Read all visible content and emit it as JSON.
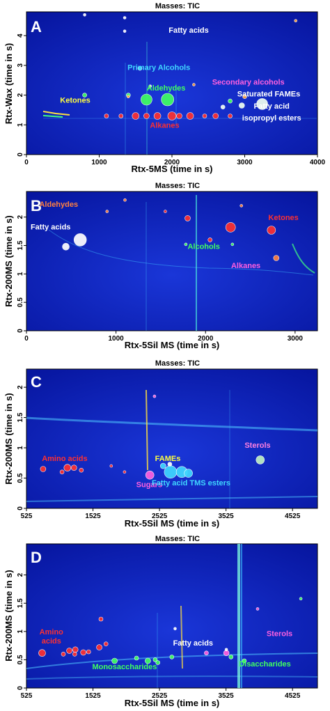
{
  "colors": {
    "background": "#0a1fb0",
    "frame": "#000000",
    "text": "#000000",
    "white": "#ffffff"
  },
  "chart_data": [
    {
      "type": "scatter",
      "panel_letter": "A",
      "title": "Masses:  TIC",
      "xlabel": "Rtx-5MS (time in s)",
      "ylabel": "Rtx-Wax (time in s)",
      "xlim": [
        0,
        4000
      ],
      "ylim": [
        0,
        4.8
      ],
      "xticks": [
        0,
        1000,
        2000,
        3000,
        4000
      ],
      "yticks": [
        0,
        1,
        2,
        3,
        4
      ],
      "annotations": [
        {
          "text": "Fatty acids",
          "x": 2230,
          "y": 4.1,
          "color": "#ffffff"
        },
        {
          "text": "Primary Alcohols",
          "x": 1820,
          "y": 2.85,
          "color": "#40d8ff"
        },
        {
          "text": "Secondary alcohols",
          "x": 3050,
          "y": 2.35,
          "color": "#ff60e0"
        },
        {
          "text": "Aldehydes",
          "x": 1920,
          "y": 2.15,
          "color": "#40ff60"
        },
        {
          "text": "Saturated FAMEs",
          "x": 3330,
          "y": 1.95,
          "color": "#ffffff"
        },
        {
          "text": "Ketones",
          "x": 670,
          "y": 1.75,
          "color": "#ffff40"
        },
        {
          "text": "Fatty acid",
          "x": 3370,
          "y": 1.55,
          "color": "#ffffff"
        },
        {
          "text": "isopropyl esters",
          "x": 3370,
          "y": 1.15,
          "color": "#ffffff"
        },
        {
          "text": "Alkanes",
          "x": 1900,
          "y": 0.9,
          "color": "#ff3030"
        }
      ],
      "series": [
        {
          "color": "#ff3030",
          "points": [
            [
              1100,
              1.3,
              3
            ],
            [
              1300,
              1.3,
              3
            ],
            [
              1500,
              1.3,
              5
            ],
            [
              1650,
              1.3,
              4
            ],
            [
              1800,
              1.3,
              5
            ],
            [
              2000,
              1.3,
              6
            ],
            [
              2100,
              1.3,
              4
            ],
            [
              2250,
              1.3,
              5
            ],
            [
              2450,
              1.3,
              3
            ],
            [
              2600,
              1.3,
              4
            ],
            [
              2800,
              1.3,
              3
            ]
          ]
        },
        {
          "color": "#40ff60",
          "points": [
            [
              1650,
              1.85,
              8
            ],
            [
              1940,
              1.85,
              9
            ],
            [
              800,
              2.0,
              3
            ],
            [
              1400,
              2.0,
              3
            ],
            [
              2800,
              1.8,
              3
            ]
          ]
        },
        {
          "color": "#f0fff0",
          "points": [
            [
              3240,
              1.7,
              8
            ],
            [
              2960,
              1.65,
              4
            ],
            [
              2700,
              1.6,
              3
            ]
          ]
        },
        {
          "color": "#40d8ff",
          "points": [
            [
              1560,
              2.9,
              3
            ]
          ]
        },
        {
          "color": "#ffa040",
          "points": [
            [
              1400,
              1.95,
              2
            ],
            [
              2300,
              2.35,
              2
            ],
            [
              3700,
              4.5,
              2
            ],
            [
              3000,
              1.95,
              3
            ]
          ]
        },
        {
          "color": "#ffffff",
          "points": [
            [
              800,
              4.7,
              2
            ],
            [
              1350,
              4.6,
              2
            ],
            [
              1350,
              4.15,
              2
            ],
            [
              1700,
              2.3,
              2
            ]
          ]
        }
      ]
    },
    {
      "type": "scatter",
      "panel_letter": "B",
      "title": "Masses:  TIC",
      "xlabel": "Rtx-5Sil MS (time in s)",
      "ylabel": "Rtx-200MS (time in s)",
      "xlim": [
        0,
        3250
      ],
      "ylim": [
        0,
        2.45
      ],
      "xticks": [
        0,
        1000,
        2000,
        3000
      ],
      "yticks": [
        0,
        0.5,
        1,
        1.5,
        2
      ],
      "annotations": [
        {
          "text": "Aldehydes",
          "x": 360,
          "y": 2.18,
          "color": "#ff8040"
        },
        {
          "text": "Ketones",
          "x": 2870,
          "y": 1.95,
          "color": "#ff3030"
        },
        {
          "text": "Fatty acids",
          "x": 270,
          "y": 1.78,
          "color": "#ffffff"
        },
        {
          "text": "Alcohols",
          "x": 1980,
          "y": 1.44,
          "color": "#40ff60"
        },
        {
          "text": "Alkanes",
          "x": 2450,
          "y": 1.1,
          "color": "#ff60e0"
        }
      ],
      "series": [
        {
          "color": "#ff3030",
          "points": [
            [
              2280,
              1.82,
              7
            ],
            [
              2735,
              1.77,
              6
            ],
            [
              2050,
              1.6,
              3
            ],
            [
              1800,
              1.98,
              4
            ],
            [
              1550,
              2.1,
              2
            ]
          ]
        },
        {
          "color": "#ffffff",
          "points": [
            [
              600,
              1.6,
              9
            ],
            [
              440,
              1.48,
              5
            ]
          ]
        },
        {
          "color": "#ff8040",
          "points": [
            [
              2790,
              1.28,
              4
            ],
            [
              2400,
              2.2,
              2
            ],
            [
              1100,
              2.3,
              2
            ],
            [
              900,
              2.1,
              2
            ]
          ]
        },
        {
          "color": "#40ff60",
          "points": [
            [
              1780,
              1.52,
              2
            ],
            [
              2300,
              1.52,
              2
            ]
          ]
        }
      ]
    },
    {
      "type": "scatter",
      "panel_letter": "C",
      "title": "Masses:  TIC",
      "xlabel": "Rtx-5Sil MS (time in s)",
      "ylabel": "Rtx-200MS (time in s)",
      "xlim": [
        525,
        4900
      ],
      "ylim": [
        0,
        2.3
      ],
      "xticks": [
        525,
        1525,
        2525,
        3525,
        4525
      ],
      "yticks": [
        0,
        0.5,
        1,
        1.5,
        2
      ],
      "annotations": [
        {
          "text": "Amino acids",
          "x": 1100,
          "y": 0.78,
          "color": "#ff3030"
        },
        {
          "text": "FAMEs",
          "x": 2650,
          "y": 0.78,
          "color": "#ffff40"
        },
        {
          "text": "Sterols",
          "x": 4000,
          "y": 1.0,
          "color": "#ff80e0"
        },
        {
          "text": "Sugars",
          "x": 2370,
          "y": 0.35,
          "color": "#ff60e0"
        },
        {
          "text": "Fatty acid TMS esters",
          "x": 3000,
          "y": 0.38,
          "color": "#40d8ff"
        }
      ],
      "series": [
        {
          "color": "#ff3030",
          "points": [
            [
              775,
              0.65,
              4
            ],
            [
              1140,
              0.67,
              5
            ],
            [
              1240,
              0.67,
              4
            ],
            [
              1350,
              0.63,
              3
            ],
            [
              1060,
              0.6,
              3
            ],
            [
              1800,
              0.7,
              2
            ],
            [
              2000,
              0.6,
              2
            ]
          ]
        },
        {
          "color": "#ff60e0",
          "points": [
            [
              2380,
              0.55,
              6
            ],
            [
              2450,
              1.85,
              2
            ]
          ]
        },
        {
          "color": "#40d8ff",
          "points": [
            [
              2690,
              0.6,
              9
            ],
            [
              2860,
              0.6,
              8
            ],
            [
              2960,
              0.58,
              6
            ],
            [
              2580,
              0.7,
              4
            ]
          ]
        },
        {
          "color": "#ffffff",
          "points": [
            [
              2680,
              0.73,
              3
            ]
          ]
        },
        {
          "color": "#c0f0c0",
          "points": [
            [
              4040,
              0.8,
              6
            ]
          ]
        }
      ]
    },
    {
      "type": "scatter",
      "panel_letter": "D",
      "title": "Masses:  TIC",
      "xlabel": "Rtx-5Sil MS (time in s)",
      "ylabel": "Rtx-200MS (time in s)",
      "xlim": [
        525,
        4900
      ],
      "ylim": [
        0,
        2.55
      ],
      "xticks": [
        525,
        1525,
        2525,
        3525,
        4525
      ],
      "yticks": [
        0,
        0.5,
        1,
        1.5,
        2
      ],
      "annotations": [
        {
          "text": "Amino",
          "x": 900,
          "y": 0.95,
          "color": "#ff3030"
        },
        {
          "text": "acids",
          "x": 900,
          "y": 0.79,
          "color": "#ff3030"
        },
        {
          "text": "Sterols",
          "x": 4330,
          "y": 0.92,
          "color": "#ff60e0"
        },
        {
          "text": "Fatty acids",
          "x": 3030,
          "y": 0.75,
          "color": "#ffffff"
        },
        {
          "text": "Monosaccharides",
          "x": 2000,
          "y": 0.33,
          "color": "#40ff60"
        },
        {
          "text": "Disaccharides",
          "x": 4110,
          "y": 0.38,
          "color": "#40ff60"
        }
      ],
      "series": [
        {
          "color": "#ff3030",
          "points": [
            [
              760,
              0.62,
              5
            ],
            [
              1170,
              0.66,
              4
            ],
            [
              1260,
              0.68,
              4
            ],
            [
              1380,
              0.63,
              4
            ],
            [
              1460,
              0.64,
              3
            ],
            [
              1620,
              0.72,
              4
            ],
            [
              1720,
              0.78,
              3
            ],
            [
              1645,
              1.22,
              3
            ],
            [
              1080,
              0.6,
              3
            ],
            [
              1250,
              0.6,
              3
            ]
          ]
        },
        {
          "color": "#40ff60",
          "points": [
            [
              1850,
              0.48,
              4
            ],
            [
              2180,
              0.53,
              3
            ],
            [
              2350,
              0.48,
              4
            ],
            [
              2460,
              0.5,
              3
            ],
            [
              2500,
              0.45,
              3
            ],
            [
              2710,
              0.55,
              3
            ],
            [
              3600,
              0.55,
              3
            ],
            [
              3800,
              0.48,
              3
            ],
            [
              4650,
              1.58,
              2
            ]
          ]
        },
        {
          "color": "#ff60e0",
          "points": [
            [
              3530,
              0.62,
              4
            ],
            [
              3230,
              0.62,
              3
            ],
            [
              4000,
              1.4,
              2
            ]
          ]
        },
        {
          "color": "#ffffff",
          "points": [
            [
              2760,
              1.05,
              2
            ],
            [
              3530,
              0.68,
              2
            ]
          ]
        }
      ]
    }
  ]
}
